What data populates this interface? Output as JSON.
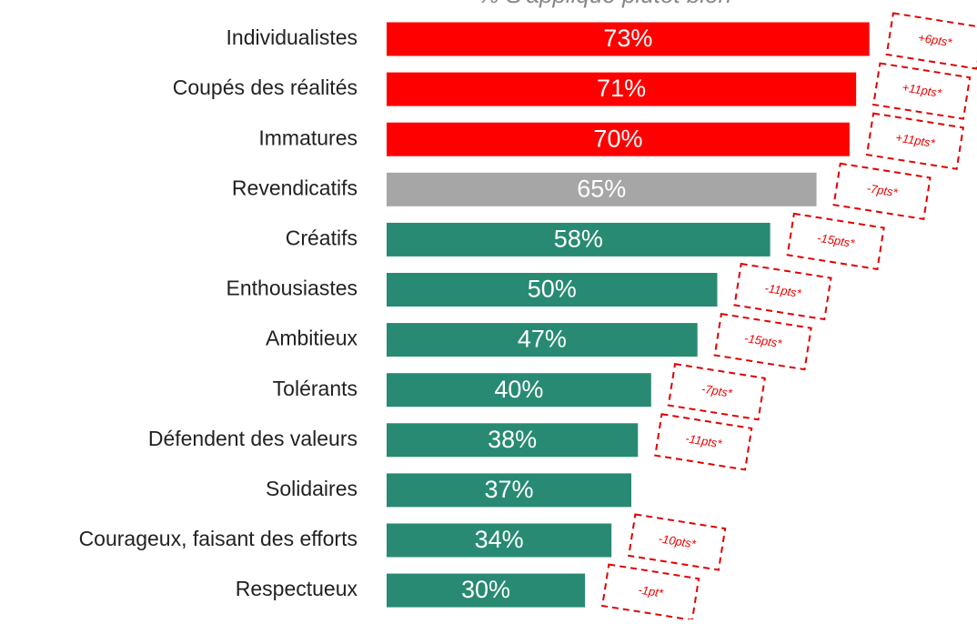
{
  "chart_data": {
    "type": "bar",
    "orientation": "horizontal",
    "title": "% S'applique plutôt bien",
    "categories": [
      "Individualistes",
      "Coupés des réalités",
      "Immatures",
      "Revendicatifs",
      "Créatifs",
      "Enthousiastes",
      "Ambitieux",
      "Tolérants",
      "Défendent des valeurs",
      "Solidaires",
      "Courageux, faisant des efforts",
      "Respectueux"
    ],
    "values": [
      73,
      71,
      70,
      65,
      58,
      50,
      47,
      40,
      38,
      37,
      34,
      30
    ],
    "value_labels": [
      "73%",
      "71%",
      "70%",
      "65%",
      "58%",
      "50%",
      "47%",
      "40%",
      "38%",
      "37%",
      "34%",
      "30%"
    ],
    "colors": [
      "#ff0000",
      "#ff0000",
      "#ff0000",
      "#a6a6a6",
      "#288a72",
      "#288a72",
      "#288a72",
      "#288a72",
      "#288a72",
      "#288a72",
      "#288a72",
      "#288a72"
    ],
    "annotations": [
      "+6pts*",
      "+11pts*",
      "+11pts*",
      "-7pts*",
      "-15pts*",
      "-11pts*",
      "-15pts*",
      "-7pts*",
      "-11pts*",
      null,
      "-10pts*",
      "-1pt*"
    ],
    "annotation_color": "#e00000"
  }
}
